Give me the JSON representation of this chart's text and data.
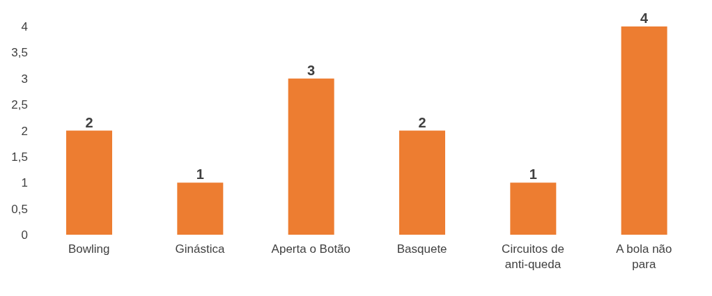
{
  "chart_data": {
    "type": "bar",
    "categories": [
      "Bowling",
      "Ginástica",
      "Aperta o Botão",
      "Basquete",
      "Circuitos de anti-queda",
      "A bola não para"
    ],
    "values": [
      2,
      1,
      3,
      2,
      1,
      4
    ],
    "color": "#ed7d31",
    "ylim": [
      0,
      4
    ],
    "yticks": [
      0,
      {
        "value": 0.5,
        "label": "0,5"
      },
      1,
      {
        "value": 1.5,
        "label": "1,5"
      },
      2,
      {
        "value": 2.5,
        "label": "2,5"
      },
      3,
      {
        "value": 3.5,
        "label": "3,5"
      },
      4
    ],
    "grid": false,
    "data_labels": true,
    "legend": false
  }
}
